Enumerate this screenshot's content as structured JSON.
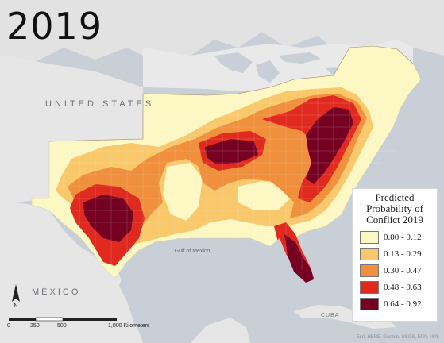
{
  "title": "2019",
  "labels": {
    "us": "UNITED STATES",
    "mexico": "MÉXICO",
    "gulf": "Gulf of Mexico",
    "cuba": "CUBA"
  },
  "attribution": "Esri, HERE, Garmin, USGS, EPA, NPS",
  "legend": {
    "title_lines": [
      "Predicted",
      "Probability of",
      "Conflict 2019"
    ],
    "classes": [
      {
        "label": "0.00 - 0.12",
        "color": "#fdf7c4"
      },
      {
        "label": "0.13 - 0.29",
        "color": "#f8c86a"
      },
      {
        "label": "0.30 - 0.47",
        "color": "#f08f3c"
      },
      {
        "label": "0.48 - 0.63",
        "color": "#e02a1f"
      },
      {
        "label": "0.64 - 0.92",
        "color": "#750022"
      }
    ]
  },
  "scale": {
    "ticks": [
      "0",
      "250",
      "500",
      "1,000 Kilometers"
    ]
  },
  "colors": {
    "water": "#c9cfd6",
    "land": "#e4e4e4",
    "border": "#ffffff"
  }
}
